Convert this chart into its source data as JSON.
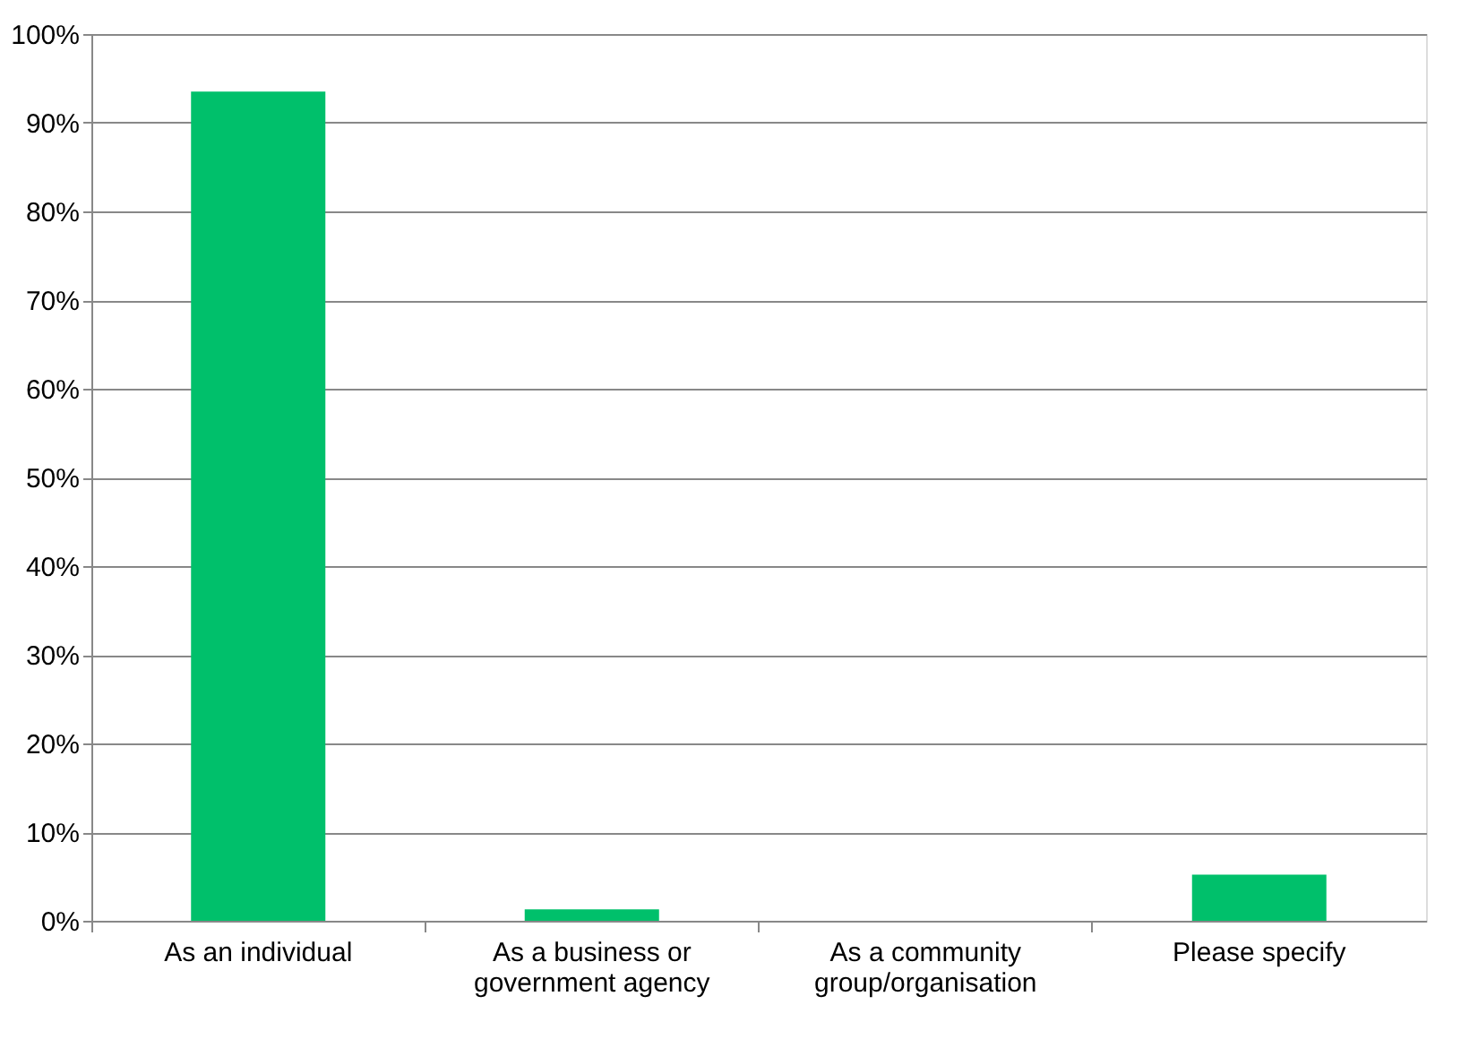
{
  "chart_data": {
    "type": "bar",
    "categories": [
      "As an individual",
      "As a business or government agency",
      "As a community group/organisation",
      "Please specify"
    ],
    "values": [
      93.5,
      1.3,
      0,
      5.2
    ],
    "color": "#00c06b",
    "ylim": [
      0,
      100
    ],
    "yticks": [
      {
        "value": 0,
        "label": "0%"
      },
      {
        "value": 10,
        "label": "10%"
      },
      {
        "value": 20,
        "label": "20%"
      },
      {
        "value": 30,
        "label": "30%"
      },
      {
        "value": 40,
        "label": "40%"
      },
      {
        "value": 50,
        "label": "50%"
      },
      {
        "value": 60,
        "label": "60%"
      },
      {
        "value": 70,
        "label": "70%"
      },
      {
        "value": 80,
        "label": "80%"
      },
      {
        "value": 90,
        "label": "90%"
      },
      {
        "value": 100,
        "label": "100%"
      }
    ],
    "grid": "y"
  }
}
